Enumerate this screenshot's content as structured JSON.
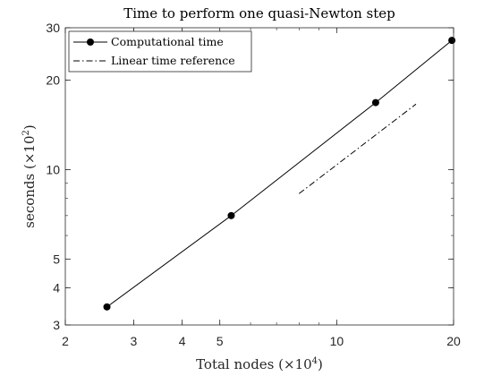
{
  "chart_data": {
    "type": "line",
    "title": "Time to perform one quasi-Newton step",
    "xlabel_main": "Total nodes (",
    "xlabel_mult": "×10",
    "xlabel_exp": "4",
    "xlabel_close": ")",
    "ylabel_main": "seconds (",
    "ylabel_mult": "×10",
    "ylabel_exp": "2",
    "ylabel_close": ")",
    "x_scale": "log",
    "y_scale": "log",
    "xlim": [
      2,
      20
    ],
    "ylim": [
      3,
      30
    ],
    "x_ticks": [
      2,
      3,
      4,
      5,
      10,
      20
    ],
    "x_tick_labels": [
      "2",
      "3",
      "4",
      "5",
      "10",
      "20"
    ],
    "y_ticks": [
      3,
      4,
      5,
      10,
      20,
      30
    ],
    "y_tick_labels": [
      "3",
      "4",
      "5",
      "10",
      "20",
      "30"
    ],
    "grid": false,
    "legend_position": "top-left",
    "series": [
      {
        "name": "Computational time",
        "style": "solid-with-markers",
        "color": "#000000",
        "x": [
          2.56,
          5.35,
          12.6,
          19.8
        ],
        "y": [
          3.45,
          7.0,
          16.8,
          27.2
        ]
      },
      {
        "name": "Linear time reference",
        "style": "dash-dot",
        "color": "#000000",
        "x": [
          8.0,
          16.0
        ],
        "y": [
          8.3,
          16.6
        ]
      }
    ]
  }
}
